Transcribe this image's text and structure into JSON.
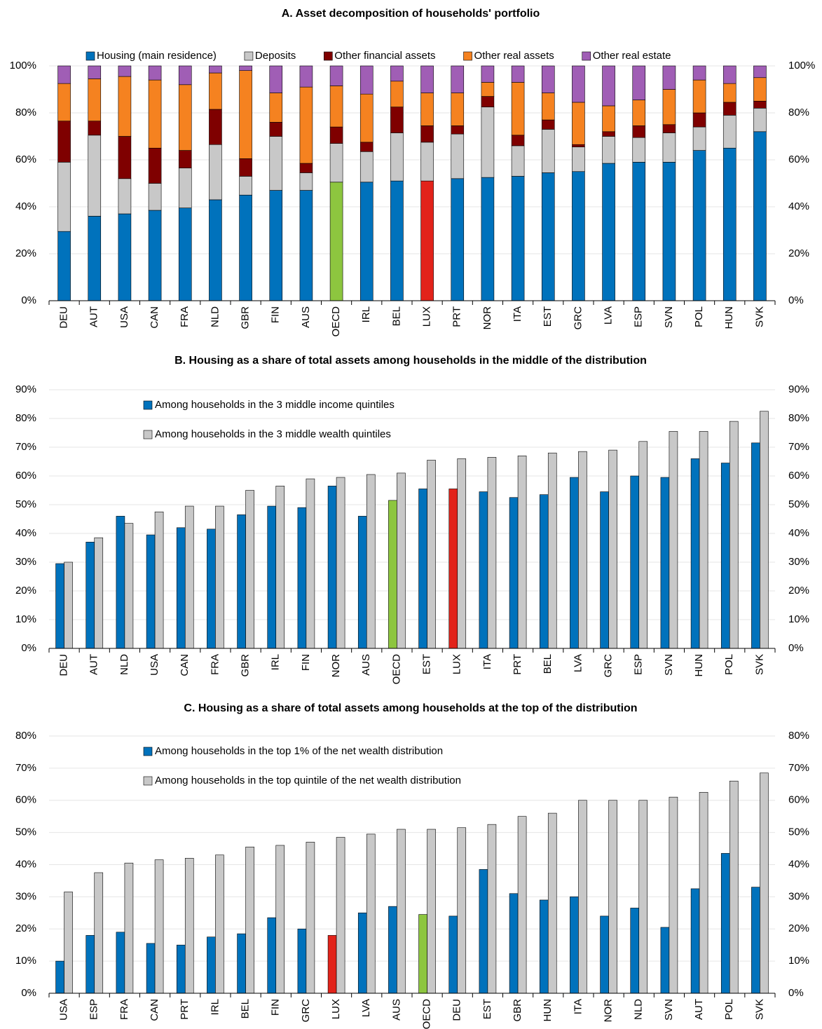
{
  "chart_data": [
    {
      "type": "stacked_bar",
      "title": "A. Asset decomposition of households' portfolio",
      "legend": "top",
      "grid": true,
      "categories": [
        "DEU",
        "AUT",
        "USA",
        "CAN",
        "FRA",
        "NLD",
        "GBR",
        "FIN",
        "AUS",
        "OECD",
        "IRL",
        "BEL",
        "LUX",
        "PRT",
        "NOR",
        "ITA",
        "EST",
        "GRC",
        "LVA",
        "ESP",
        "SVN",
        "POL",
        "HUN",
        "SVK"
      ],
      "series": [
        {
          "name": "Housing (main residence)",
          "color": "#0072bc",
          "colors": [
            "#0072bc",
            "#0072bc",
            "#0072bc",
            "#0072bc",
            "#0072bc",
            "#0072bc",
            "#0072bc",
            "#0072bc",
            "#0072bc",
            "#8dc63f",
            "#0072bc",
            "#0072bc",
            "#e2231a",
            "#0072bc",
            "#0072bc",
            "#0072bc",
            "#0072bc",
            "#0072bc",
            "#0072bc",
            "#0072bc",
            "#0072bc",
            "#0072bc",
            "#0072bc",
            "#0072bc"
          ],
          "values": [
            29.5,
            36,
            37,
            38.5,
            39.5,
            43,
            45,
            47,
            47,
            50.5,
            50.5,
            51,
            51,
            52,
            52.5,
            53,
            54.5,
            55,
            58.5,
            59,
            59,
            64,
            65,
            72
          ]
        },
        {
          "name": "Deposits",
          "color": "#c8c8c8",
          "values": [
            29.5,
            34.5,
            15,
            11.5,
            17,
            23.5,
            8,
            23,
            7.5,
            16.5,
            13,
            20.5,
            16.5,
            19,
            30,
            13,
            18.5,
            10.5,
            11.5,
            10.5,
            12.5,
            10,
            14,
            10
          ]
        },
        {
          "name": "Other financial assets",
          "color": "#7f0000",
          "values": [
            17.5,
            6,
            18,
            15,
            7.5,
            15,
            7.5,
            6,
            4,
            7,
            4,
            11,
            7,
            3.5,
            4.5,
            4.5,
            4,
            1,
            2,
            5,
            3.5,
            6,
            5.5,
            3
          ]
        },
        {
          "name": "Other real assets",
          "color": "#f58220",
          "values": [
            16,
            18,
            25.5,
            29,
            28,
            15.5,
            37.5,
            12.5,
            32.5,
            17.5,
            20.5,
            11,
            14,
            14,
            6,
            22.5,
            11.5,
            18,
            11,
            11,
            15,
            14,
            8,
            10
          ]
        },
        {
          "name": "Other real estate",
          "color": "#a05eb5",
          "values": [
            7.5,
            5.5,
            4.5,
            6,
            8,
            3,
            2,
            11.5,
            9,
            8.5,
            12,
            6.5,
            11.5,
            11.5,
            7,
            7,
            11.5,
            15.5,
            17,
            14.5,
            10,
            6,
            7.5,
            5
          ]
        }
      ],
      "ylim": [
        0,
        100
      ],
      "yticks": [
        {
          "value": 0,
          "label": "0%"
        },
        {
          "value": 20,
          "label": "20%"
        },
        {
          "value": 40,
          "label": "40%"
        },
        {
          "value": 60,
          "label": "60%"
        },
        {
          "value": 80,
          "label": "80%"
        },
        {
          "value": 100,
          "label": "100%"
        }
      ]
    },
    {
      "type": "bar",
      "title": "B. Housing as a share of total assets among households in the middle of the distribution",
      "legend": "upper-left",
      "grid": true,
      "categories": [
        "DEU",
        "AUT",
        "NLD",
        "USA",
        "CAN",
        "FRA",
        "GBR",
        "IRL",
        "FIN",
        "NOR",
        "AUS",
        "OECD",
        "EST",
        "LUX",
        "ITA",
        "PRT",
        "BEL",
        "LVA",
        "GRC",
        "ESP",
        "SVN",
        "HUN",
        "POL",
        "SVK"
      ],
      "series": [
        {
          "name": "Among households in the 3 middle income quintiles",
          "color": "#0072bc",
          "colors": [
            "#0072bc",
            "#0072bc",
            "#0072bc",
            "#0072bc",
            "#0072bc",
            "#0072bc",
            "#0072bc",
            "#0072bc",
            "#0072bc",
            "#0072bc",
            "#0072bc",
            "#8dc63f",
            "#0072bc",
            "#e2231a",
            "#0072bc",
            "#0072bc",
            "#0072bc",
            "#0072bc",
            "#0072bc",
            "#0072bc",
            "#0072bc",
            "#0072bc",
            "#0072bc",
            "#0072bc"
          ],
          "values": [
            29.5,
            37,
            46,
            39.5,
            42,
            41.5,
            46.5,
            49.5,
            49,
            56.5,
            46,
            51.5,
            55.5,
            55.5,
            54.5,
            52.5,
            53.5,
            59.5,
            54.5,
            60,
            59.5,
            66,
            64.5,
            71.5
          ]
        },
        {
          "name": "Among households in the 3 middle wealth quintiles",
          "color": "#c8c8c8",
          "values": [
            30,
            38.5,
            43.5,
            47.5,
            49.5,
            49.5,
            55,
            56.5,
            59,
            59.5,
            60.5,
            61,
            65.5,
            66,
            66.5,
            67,
            68,
            68.5,
            69,
            72,
            75.5,
            75.5,
            79,
            82.5
          ]
        }
      ],
      "ylim": [
        0,
        90
      ],
      "yticks": [
        {
          "value": 0,
          "label": "0%"
        },
        {
          "value": 10,
          "label": "10%"
        },
        {
          "value": 20,
          "label": "20%"
        },
        {
          "value": 30,
          "label": "30%"
        },
        {
          "value": 40,
          "label": "40%"
        },
        {
          "value": 50,
          "label": "50%"
        },
        {
          "value": 60,
          "label": "60%"
        },
        {
          "value": 70,
          "label": "70%"
        },
        {
          "value": 80,
          "label": "80%"
        },
        {
          "value": 90,
          "label": "90%"
        }
      ]
    },
    {
      "type": "bar",
      "title": "C. Housing as a share of total assets among households at the top of the distribution",
      "legend": "upper-left",
      "grid": true,
      "categories": [
        "USA",
        "ESP",
        "FRA",
        "CAN",
        "PRT",
        "IRL",
        "BEL",
        "FIN",
        "GRC",
        "LUX",
        "LVA",
        "AUS",
        "OECD",
        "DEU",
        "EST",
        "GBR",
        "HUN",
        "ITA",
        "NOR",
        "NLD",
        "SVN",
        "AUT",
        "POL",
        "SVK"
      ],
      "series": [
        {
          "name": "Among households in the top 1% of the net wealth distribution",
          "color": "#0072bc",
          "colors": [
            "#0072bc",
            "#0072bc",
            "#0072bc",
            "#0072bc",
            "#0072bc",
            "#0072bc",
            "#0072bc",
            "#0072bc",
            "#0072bc",
            "#e2231a",
            "#0072bc",
            "#0072bc",
            "#8dc63f",
            "#0072bc",
            "#0072bc",
            "#0072bc",
            "#0072bc",
            "#0072bc",
            "#0072bc",
            "#0072bc",
            "#0072bc",
            "#0072bc",
            "#0072bc",
            "#0072bc"
          ],
          "values": [
            10,
            18,
            19,
            15.5,
            15,
            17.5,
            18.5,
            23.5,
            20,
            18,
            25,
            27,
            24.5,
            24,
            38.5,
            31,
            29,
            30,
            24,
            26.5,
            20.5,
            32.5,
            43.5,
            33
          ]
        },
        {
          "name": "Among households in the top quintile of the net wealth distribution",
          "color": "#c8c8c8",
          "values": [
            31.5,
            37.5,
            40.5,
            41.5,
            42,
            43,
            45.5,
            46,
            47,
            48.5,
            49.5,
            51,
            51,
            51.5,
            52.5,
            55,
            56,
            60,
            60,
            60,
            61,
            62.5,
            66,
            68.5
          ]
        }
      ],
      "ylim": [
        0,
        80
      ],
      "yticks": [
        {
          "value": 0,
          "label": "0%"
        },
        {
          "value": 10,
          "label": "10%"
        },
        {
          "value": 20,
          "label": "20%"
        },
        {
          "value": 30,
          "label": "30%"
        },
        {
          "value": 40,
          "label": "40%"
        },
        {
          "value": 50,
          "label": "50%"
        },
        {
          "value": 60,
          "label": "60%"
        },
        {
          "value": 70,
          "label": "70%"
        },
        {
          "value": 80,
          "label": "80%"
        }
      ]
    }
  ]
}
